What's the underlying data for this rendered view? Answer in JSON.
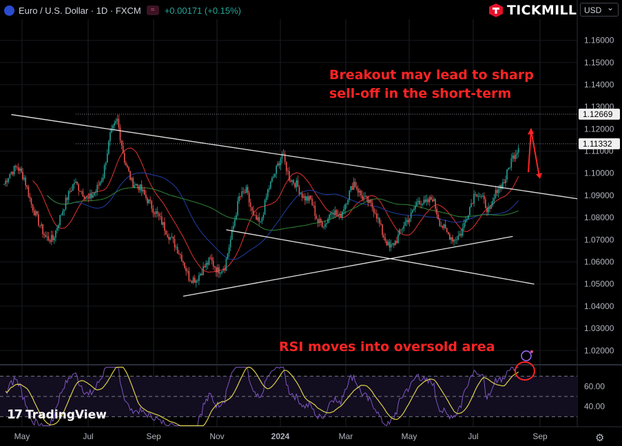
{
  "header": {
    "symbol_title": "Euro / U.S. Dollar · 1D · FXCM",
    "change": "+0.00171 (+0.15%)"
  },
  "brand": {
    "name": "TICKMILL"
  },
  "currency_selector": {
    "value": "USD"
  },
  "annotations": {
    "top_line1": "Breakout may lead to sharp",
    "top_line2": "sell-off in the short-term",
    "rsi": "RSI moves into oversold area"
  },
  "watermark": "TradingView",
  "colors": {
    "up": "#26a69a",
    "down": "#ef5350",
    "annotation": "#ff2424",
    "ma_red": "#d32f2f",
    "ma_blue": "#1e3a9a",
    "ma_green": "#2e7d32",
    "rsi": "#7e57c2",
    "rsi_ma": "#e0d24c"
  },
  "chart_data": {
    "type": "candlestick",
    "x_ticks": [
      "May",
      "Jul",
      "Sep",
      "Nov",
      "2024",
      "Mar",
      "May",
      "Jul",
      "Sep"
    ],
    "y_ticks": [
      "1.16000",
      "1.15000",
      "1.14000",
      "1.13000",
      "1.12000",
      "1.11000",
      "1.10000",
      "1.09000",
      "1.08000",
      "1.07000",
      "1.06000",
      "1.05000",
      "1.04000",
      "1.03000",
      "1.02000"
    ],
    "ylim": [
      1.0145,
      1.1695
    ],
    "price_tags": [
      {
        "value": 1.12669,
        "label": "1.12669"
      },
      {
        "value": 1.11332,
        "label": "1.11332"
      }
    ],
    "rsi_ticks": [
      "60.00",
      "40.00"
    ],
    "rsi_levels": [
      70,
      50,
      30
    ],
    "rsi_ylim": [
      20,
      80
    ],
    "weeks": [
      {
        "o": 1.094,
        "c": 1.1
      },
      {
        "o": 1.1,
        "c": 1.103
      },
      {
        "o": 1.103,
        "c": 1.098
      },
      {
        "o": 1.098,
        "c": 1.086
      },
      {
        "o": 1.086,
        "c": 1.078
      },
      {
        "o": 1.078,
        "c": 1.071
      },
      {
        "o": 1.071,
        "c": 1.07
      },
      {
        "o": 1.07,
        "c": 1.08
      },
      {
        "o": 1.08,
        "c": 1.089
      },
      {
        "o": 1.089,
        "c": 1.096
      },
      {
        "o": 1.096,
        "c": 1.092
      },
      {
        "o": 1.092,
        "c": 1.088
      },
      {
        "o": 1.088,
        "c": 1.092
      },
      {
        "o": 1.092,
        "c": 1.099
      },
      {
        "o": 1.099,
        "c": 1.117
      },
      {
        "o": 1.117,
        "c": 1.124
      },
      {
        "o": 1.124,
        "c": 1.106
      },
      {
        "o": 1.106,
        "c": 1.096
      },
      {
        "o": 1.096,
        "c": 1.094
      },
      {
        "o": 1.094,
        "c": 1.089
      },
      {
        "o": 1.089,
        "c": 1.084
      },
      {
        "o": 1.084,
        "c": 1.079
      },
      {
        "o": 1.079,
        "c": 1.073
      },
      {
        "o": 1.073,
        "c": 1.068
      },
      {
        "o": 1.068,
        "c": 1.062
      },
      {
        "o": 1.062,
        "c": 1.053
      },
      {
        "o": 1.053,
        "c": 1.052
      },
      {
        "o": 1.052,
        "c": 1.057
      },
      {
        "o": 1.057,
        "c": 1.061
      },
      {
        "o": 1.061,
        "c": 1.056
      },
      {
        "o": 1.056,
        "c": 1.058
      },
      {
        "o": 1.058,
        "c": 1.073
      },
      {
        "o": 1.073,
        "c": 1.089
      },
      {
        "o": 1.089,
        "c": 1.092
      },
      {
        "o": 1.092,
        "c": 1.08
      },
      {
        "o": 1.08,
        "c": 1.077
      },
      {
        "o": 1.077,
        "c": 1.092
      },
      {
        "o": 1.092,
        "c": 1.1
      },
      {
        "o": 1.1,
        "c": 1.109
      },
      {
        "o": 1.109,
        "c": 1.098
      },
      {
        "o": 1.098,
        "c": 1.095
      },
      {
        "o": 1.095,
        "c": 1.089
      },
      {
        "o": 1.089,
        "c": 1.088
      },
      {
        "o": 1.088,
        "c": 1.078
      },
      {
        "o": 1.078,
        "c": 1.077
      },
      {
        "o": 1.077,
        "c": 1.084
      },
      {
        "o": 1.084,
        "c": 1.08
      },
      {
        "o": 1.08,
        "c": 1.088
      },
      {
        "o": 1.088,
        "c": 1.096
      },
      {
        "o": 1.096,
        "c": 1.09
      },
      {
        "o": 1.09,
        "c": 1.087
      },
      {
        "o": 1.087,
        "c": 1.083
      },
      {
        "o": 1.083,
        "c": 1.073
      },
      {
        "o": 1.073,
        "c": 1.066
      },
      {
        "o": 1.066,
        "c": 1.07
      },
      {
        "o": 1.07,
        "c": 1.077
      },
      {
        "o": 1.077,
        "c": 1.081
      },
      {
        "o": 1.081,
        "c": 1.088
      },
      {
        "o": 1.088,
        "c": 1.086
      },
      {
        "o": 1.086,
        "c": 1.089
      },
      {
        "o": 1.089,
        "c": 1.078
      },
      {
        "o": 1.078,
        "c": 1.073
      },
      {
        "o": 1.073,
        "c": 1.07
      },
      {
        "o": 1.07,
        "c": 1.073
      },
      {
        "o": 1.073,
        "c": 1.083
      },
      {
        "o": 1.083,
        "c": 1.092
      },
      {
        "o": 1.092,
        "c": 1.088
      },
      {
        "o": 1.088,
        "c": 1.082
      },
      {
        "o": 1.082,
        "c": 1.093
      },
      {
        "o": 1.093,
        "c": 1.096
      },
      {
        "o": 1.096,
        "c": 1.106
      },
      {
        "o": 1.106,
        "c": 1.112
      }
    ],
    "trendlines": [
      {
        "name": "upper-resistance",
        "from": [
          1,
          1.1265
        ],
        "to": [
          80,
          1.0885
        ]
      },
      {
        "name": "lower-support",
        "from": [
          25,
          1.0445
        ],
        "to": [
          71,
          1.0715
        ]
      },
      {
        "name": "channel-lower",
        "from": [
          31,
          1.0745
        ],
        "to": [
          74,
          1.05
        ]
      }
    ]
  }
}
